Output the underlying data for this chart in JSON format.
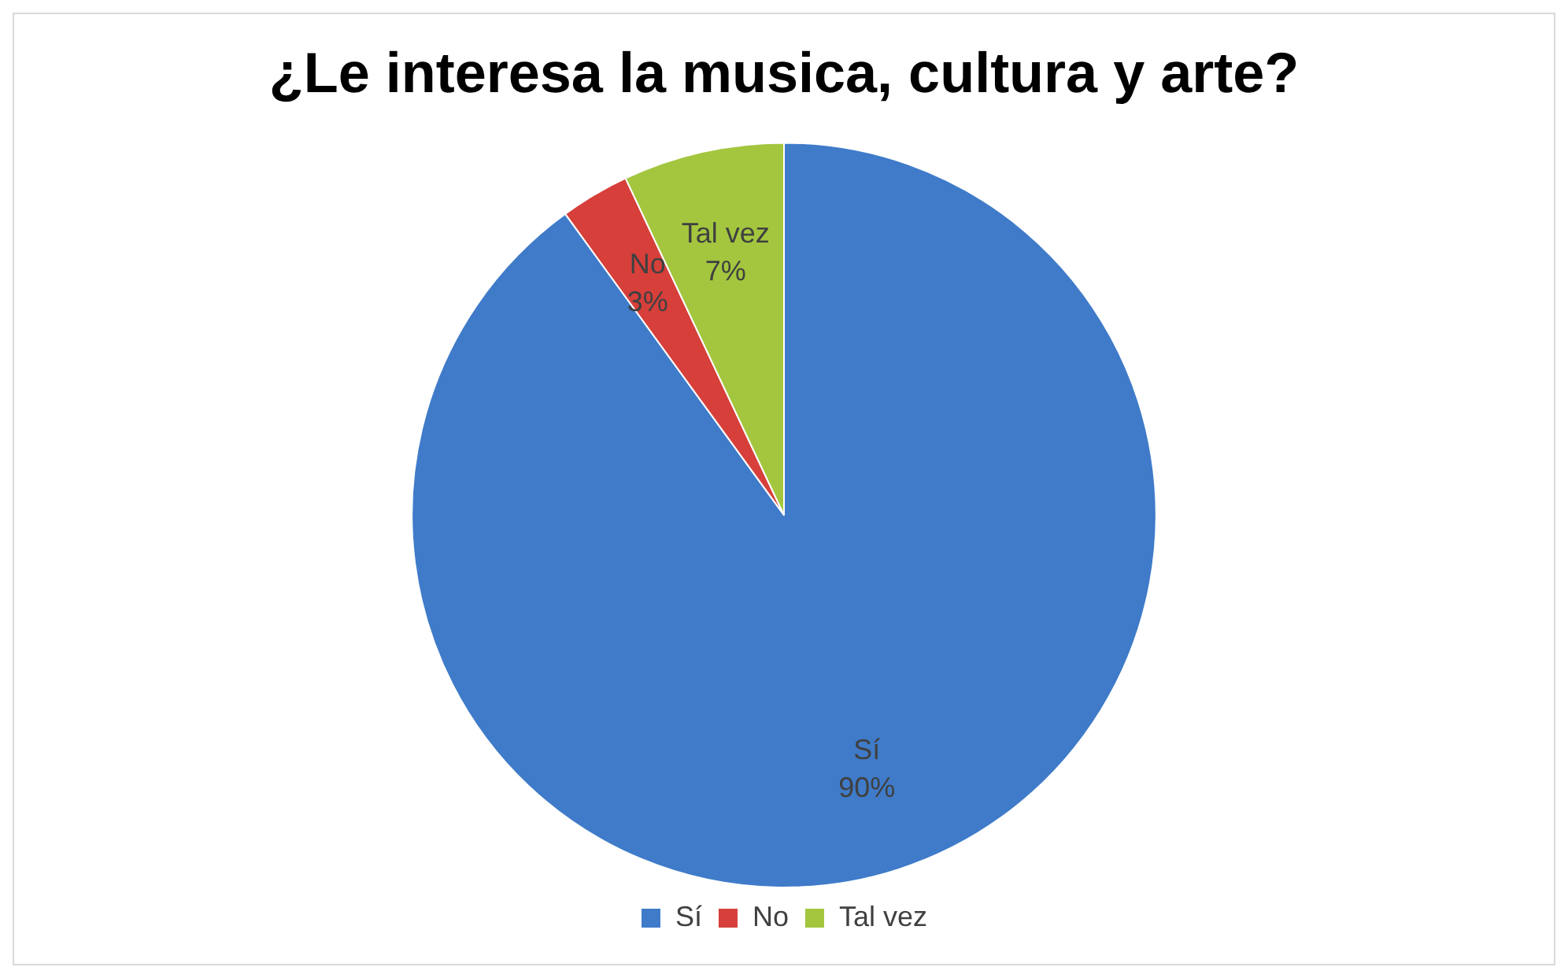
{
  "chart_data": {
    "type": "pie",
    "title": "¿Le interesa la musica, cultura y arte?",
    "categories": [
      "Sí",
      "No",
      "Tal vez"
    ],
    "values": [
      90,
      3,
      7
    ],
    "value_labels": [
      "90%",
      "3%",
      "7%"
    ],
    "colors": [
      "#3f7bc9",
      "#d63f3a",
      "#a3c63e"
    ],
    "legend": "bottom"
  }
}
